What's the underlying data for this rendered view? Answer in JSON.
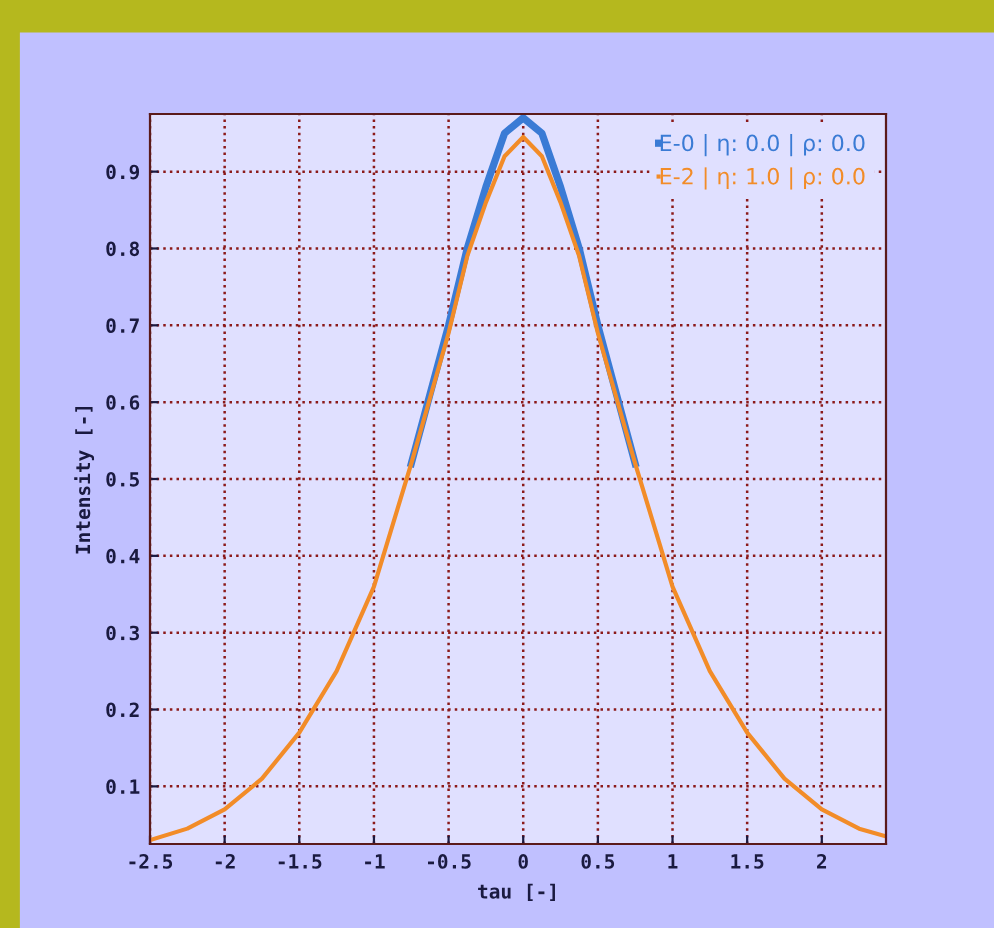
{
  "chart_data": {
    "type": "line",
    "xlabel": "tau [-]",
    "ylabel": "Intensity [-]",
    "xlim": [
      -2.5,
      2.43
    ],
    "ylim": [
      0.025,
      0.975
    ],
    "xticks": [
      -2.5,
      -2,
      -1.5,
      -1,
      -0.5,
      0,
      0.5,
      1,
      1.5,
      2
    ],
    "yticks": [
      0.1,
      0.2,
      0.3,
      0.4,
      0.5,
      0.6,
      0.7,
      0.8,
      0.9
    ],
    "grid": true,
    "legend": "top right",
    "line_style": "solid",
    "series": [
      {
        "name": "E-0 | η: 0.0 | ρ: 0.0",
        "color": "#3a7bd5",
        "x": [
          -0.75,
          -0.5,
          -0.375,
          -0.25,
          -0.125,
          0,
          0.125,
          0.25,
          0.375,
          0.5,
          0.75
        ],
        "values": [
          0.52,
          0.7,
          0.8,
          0.88,
          0.95,
          0.97,
          0.95,
          0.88,
          0.8,
          0.7,
          0.52
        ]
      },
      {
        "name": "E-2 | η: 1.0 | ρ: 0.0",
        "color": "#f28c28",
        "x": [
          -2.5,
          -2.25,
          -2,
          -1.75,
          -1.5,
          -1.25,
          -1,
          -0.75,
          -0.5,
          -0.375,
          -0.25,
          -0.125,
          0,
          0.125,
          0.25,
          0.375,
          0.5,
          0.75,
          1,
          1.25,
          1.5,
          1.75,
          2,
          2.25,
          2.43
        ],
        "values": [
          0.03,
          0.045,
          0.07,
          0.11,
          0.17,
          0.25,
          0.36,
          0.52,
          0.69,
          0.79,
          0.86,
          0.92,
          0.945,
          0.92,
          0.86,
          0.79,
          0.69,
          0.52,
          0.36,
          0.25,
          0.17,
          0.11,
          0.07,
          0.045,
          0.035
        ]
      }
    ]
  }
}
